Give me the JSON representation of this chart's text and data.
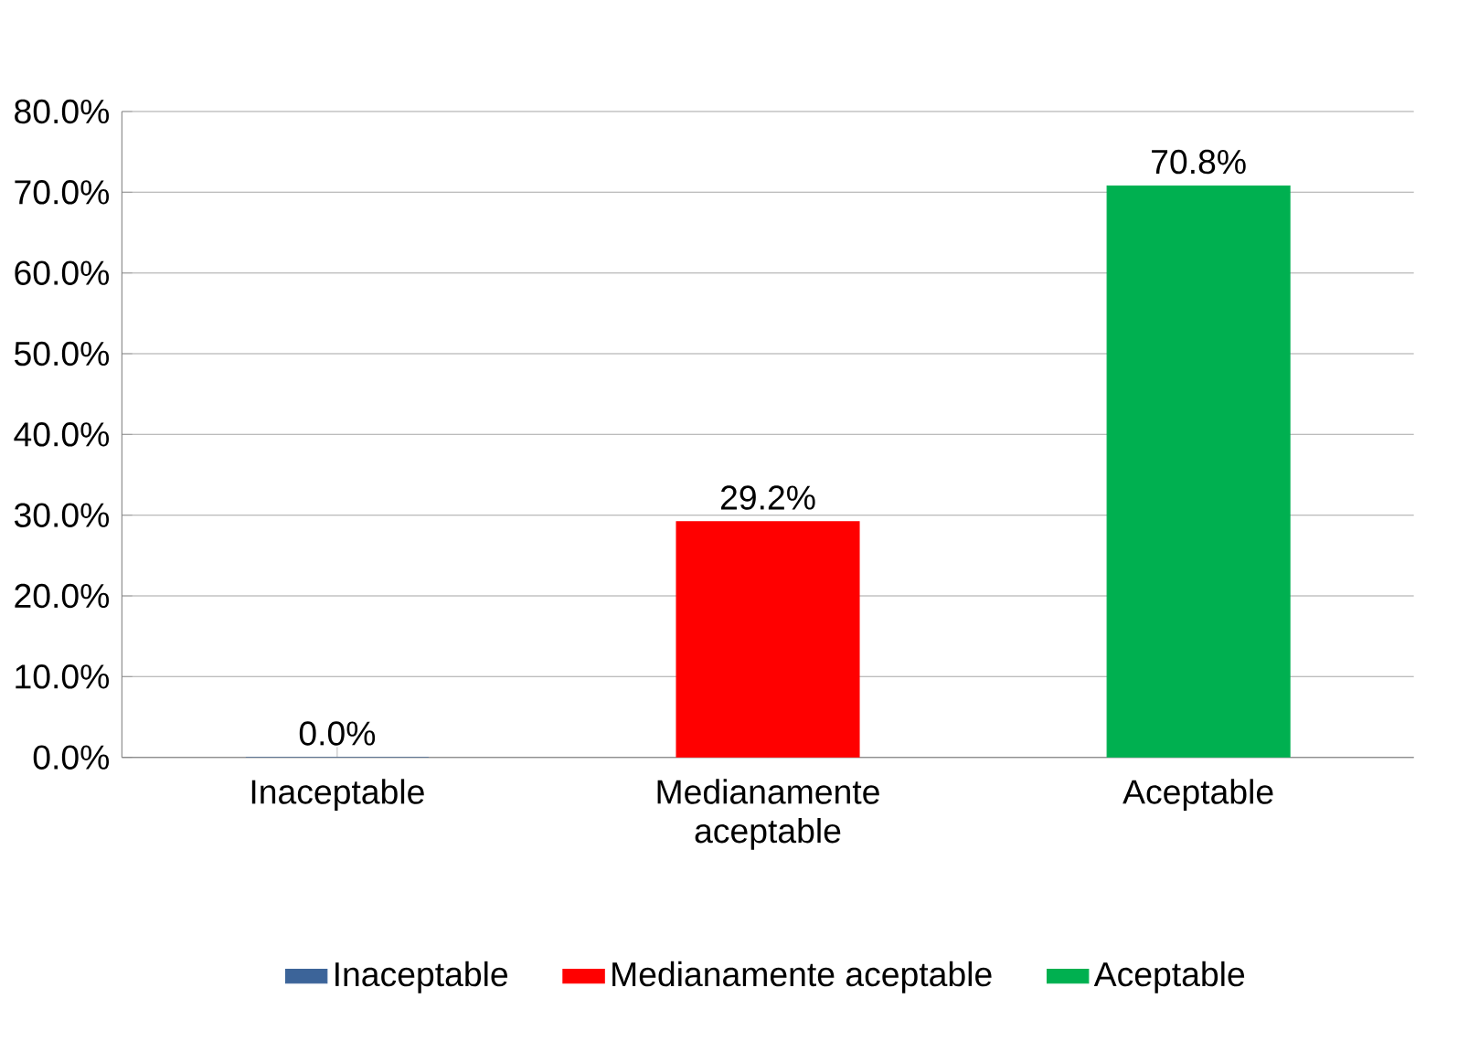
{
  "chart_data": {
    "type": "bar",
    "categories": [
      "Inaceptable",
      "Medianamente aceptable",
      "Aceptable"
    ],
    "series": [
      {
        "name": "Inaceptable",
        "color": "#3c6499",
        "values": [
          0.0,
          null,
          null
        ],
        "value_labels": [
          "0.0%",
          null,
          null
        ]
      },
      {
        "name": "Medianamente aceptable",
        "color": "#ff0000",
        "values": [
          null,
          29.2,
          null
        ],
        "value_labels": [
          null,
          "29.2%",
          null
        ]
      },
      {
        "name": "Aceptable",
        "color": "#00b050",
        "values": [
          null,
          null,
          70.8
        ],
        "value_labels": [
          null,
          null,
          "70.8%"
        ]
      }
    ],
    "ylim": [
      0,
      80
    ],
    "yticks": [
      {
        "value": 0,
        "label": "0.0%"
      },
      {
        "value": 10,
        "label": "10.0%"
      },
      {
        "value": 20,
        "label": "20.0%"
      },
      {
        "value": 30,
        "label": "30.0%"
      },
      {
        "value": 40,
        "label": "40.0%"
      },
      {
        "value": 50,
        "label": "50.0%"
      },
      {
        "value": 60,
        "label": "60.0%"
      },
      {
        "value": 70,
        "label": "70.0%"
      },
      {
        "value": 80,
        "label": "80.0%"
      }
    ],
    "grid": "y",
    "legend": "bottom"
  }
}
